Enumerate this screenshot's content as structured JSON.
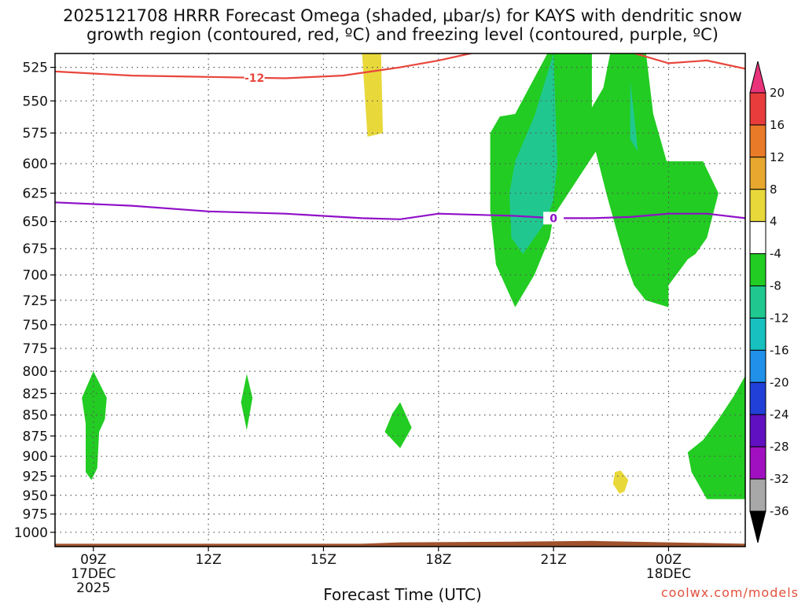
{
  "title": "2025121708 HRRR Forecast Omega (shaded, µbar/s) for KAYS with dendritic snow\ngrowth region (contoured, red, ºC) and freezing level (contoured, purple, ºC)",
  "credit": "coolwx.com/models",
  "chart_data": {
    "type": "contour time-height cross-section",
    "xlabel": "Forecast Time (UTC)",
    "ylabel": "",
    "x_ticks": [
      {
        "hour": 9,
        "label": "09Z",
        "sub1": "17DEC",
        "sub2": "2025"
      },
      {
        "hour": 12,
        "label": "12Z",
        "sub1": "",
        "sub2": ""
      },
      {
        "hour": 15,
        "label": "15Z",
        "sub1": "",
        "sub2": ""
      },
      {
        "hour": 18,
        "label": "18Z",
        "sub1": "",
        "sub2": ""
      },
      {
        "hour": 21,
        "label": "21Z",
        "sub1": "",
        "sub2": ""
      },
      {
        "hour": 24,
        "label": "00Z",
        "sub1": "18DEC",
        "sub2": ""
      }
    ],
    "xlim_hours": [
      8,
      26
    ],
    "y_ticks": [
      525,
      550,
      575,
      600,
      625,
      650,
      675,
      700,
      725,
      750,
      775,
      800,
      825,
      850,
      875,
      900,
      925,
      950,
      975,
      1000
    ],
    "ylim_hPa": [
      515,
      1020
    ],
    "grid": true,
    "colorbar": {
      "labels": [
        "20",
        "16",
        "12",
        "8",
        "4",
        "-4",
        "-8",
        "-12",
        "-16",
        "-20",
        "-24",
        "-28",
        "-32",
        "-36"
      ],
      "colors": [
        "#e8337a",
        "#e83c3c",
        "#e87a28",
        "#e8a830",
        "#e8d83a",
        "#ffffff",
        "#22cc22",
        "#20c890",
        "#18c0c0",
        "#2090e8",
        "#2040d8",
        "#6010c0",
        "#a010c0",
        "#a8a8a8",
        "#000000"
      ]
    },
    "contour_labels": {
      "dgz": "-12",
      "freezing": "0"
    },
    "dgz_line_-12C": [
      [
        8,
        528
      ],
      [
        10,
        531
      ],
      [
        12,
        532
      ],
      [
        14,
        533
      ],
      [
        15.5,
        531
      ],
      [
        17,
        525
      ],
      [
        18,
        520
      ],
      [
        19,
        514
      ],
      [
        21,
        512
      ],
      [
        23,
        514
      ],
      [
        24,
        522
      ],
      [
        25,
        520
      ],
      [
        26,
        526
      ]
    ],
    "freezing_line_0C": [
      [
        8,
        633
      ],
      [
        10,
        636
      ],
      [
        12,
        641
      ],
      [
        14,
        643
      ],
      [
        16,
        647
      ],
      [
        17,
        648
      ],
      [
        18,
        643
      ],
      [
        20,
        645
      ],
      [
        21,
        647
      ],
      [
        22,
        647
      ],
      [
        23,
        646
      ],
      [
        24,
        643
      ],
      [
        25,
        643
      ],
      [
        26,
        647
      ]
    ],
    "omega_regions": [
      {
        "bin": "4 to 8",
        "color": "#e8d83a",
        "points": [
          [
            16.0,
            512
          ],
          [
            16.5,
            512
          ],
          [
            16.55,
            575
          ],
          [
            16.15,
            578
          ]
        ]
      },
      {
        "bin": "4 to 8",
        "color": "#e8d83a",
        "points": [
          [
            22.75,
            918
          ],
          [
            22.95,
            930
          ],
          [
            22.85,
            945
          ],
          [
            22.72,
            948
          ],
          [
            22.55,
            935
          ],
          [
            22.6,
            920
          ]
        ]
      },
      {
        "bin": "-4 to -8",
        "color": "#22cc22",
        "points": [
          [
            20.0,
            560
          ],
          [
            20.9,
            512
          ],
          [
            22.0,
            512
          ],
          [
            22.0,
            555
          ],
          [
            22.3,
            540
          ],
          [
            22.5,
            512
          ],
          [
            23.4,
            512
          ],
          [
            23.6,
            560
          ],
          [
            23.95,
            598
          ],
          [
            24.9,
            598
          ],
          [
            25.3,
            625
          ],
          [
            25.0,
            665
          ],
          [
            24.7,
            680
          ],
          [
            24.5,
            685
          ],
          [
            24.2,
            700
          ],
          [
            24.0,
            710
          ],
          [
            24.0,
            732
          ],
          [
            23.4,
            725
          ],
          [
            23.1,
            710
          ],
          [
            22.9,
            690
          ],
          [
            22.7,
            665
          ],
          [
            22.4,
            628
          ],
          [
            22.1,
            590
          ],
          [
            21.0,
            645
          ],
          [
            20.9,
            665
          ],
          [
            20.5,
            700
          ],
          [
            20.0,
            732
          ],
          [
            19.5,
            690
          ],
          [
            19.35,
            640
          ],
          [
            19.35,
            575
          ],
          [
            19.6,
            562
          ]
        ]
      },
      {
        "bin": "-8 to -12",
        "color": "#20c890",
        "points": [
          [
            20.0,
            598
          ],
          [
            20.5,
            562
          ],
          [
            21.0,
            515
          ],
          [
            21.1,
            600
          ],
          [
            21.0,
            630
          ],
          [
            20.8,
            650
          ],
          [
            20.5,
            665
          ],
          [
            20.2,
            680
          ],
          [
            19.9,
            665
          ],
          [
            19.85,
            625
          ]
        ]
      },
      {
        "bin": "-8 to -12",
        "color": "#20c890",
        "points": [
          [
            23.0,
            535
          ],
          [
            23.1,
            560
          ],
          [
            23.2,
            590
          ],
          [
            23.0,
            580
          ]
        ]
      },
      {
        "bin": "-4 to -8",
        "color": "#22cc22",
        "points": [
          [
            9.0,
            800
          ],
          [
            9.35,
            830
          ],
          [
            9.3,
            855
          ],
          [
            9.15,
            870
          ],
          [
            9.1,
            915
          ],
          [
            8.95,
            930
          ],
          [
            8.8,
            920
          ],
          [
            8.8,
            860
          ],
          [
            8.7,
            830
          ]
        ]
      },
      {
        "bin": "-4 to -8",
        "color": "#22cc22",
        "points": [
          [
            13.0,
            803
          ],
          [
            13.15,
            830
          ],
          [
            13.0,
            868
          ],
          [
            12.85,
            835
          ]
        ]
      },
      {
        "bin": "-4 to -8",
        "color": "#22cc22",
        "points": [
          [
            17.0,
            835
          ],
          [
            17.3,
            865
          ],
          [
            17.0,
            890
          ],
          [
            16.6,
            870
          ],
          [
            16.8,
            848
          ]
        ]
      },
      {
        "bin": "-4 to -8",
        "color": "#22cc22",
        "points": [
          [
            26.0,
            805
          ],
          [
            26.0,
            955
          ],
          [
            25.0,
            955
          ],
          [
            24.6,
            920
          ],
          [
            24.5,
            895
          ],
          [
            24.9,
            880
          ],
          [
            25.3,
            855
          ],
          [
            25.7,
            828
          ]
        ]
      }
    ],
    "terrain": {
      "color": "#a0522d",
      "top_pressure_hPa": [
        [
          8,
          1016
        ],
        [
          16,
          1016
        ],
        [
          17,
          1014
        ],
        [
          20,
          1013
        ],
        [
          22,
          1012
        ],
        [
          24,
          1014
        ],
        [
          26,
          1016
        ]
      ]
    }
  }
}
